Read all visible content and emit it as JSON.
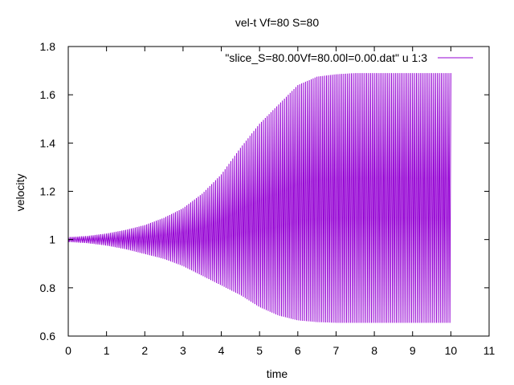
{
  "chart_data": {
    "type": "line",
    "title": "vel-t Vf=80 S=80",
    "xlabel": "time",
    "ylabel": "velocity",
    "xlim": [
      0,
      11
    ],
    "ylim": [
      0.6,
      1.8
    ],
    "xticks": [
      "0",
      "1",
      "2",
      "3",
      "4",
      "5",
      "6",
      "7",
      "8",
      "9",
      "10",
      "11"
    ],
    "yticks": [
      "0.6",
      "0.8",
      "1",
      "1.2",
      "1.4",
      "1.6",
      "1.8"
    ],
    "grid": false,
    "legend_position": "top-right",
    "series": [
      {
        "name": "\"slice_S=80.00Vf=80.00l=0.00.dat\" u 1:3",
        "color": "#9400d3",
        "style": "rapid oscillation filling envelope",
        "upper_envelope": {
          "x": [
            0,
            0.5,
            1,
            1.5,
            2,
            2.5,
            3,
            3.5,
            4,
            4.5,
            5,
            5.5,
            6,
            6.5,
            7,
            7.5,
            8,
            8.5,
            9,
            9.5,
            10
          ],
          "y": [
            1.01,
            1.015,
            1.025,
            1.04,
            1.06,
            1.09,
            1.13,
            1.19,
            1.27,
            1.38,
            1.48,
            1.56,
            1.64,
            1.675,
            1.685,
            1.69,
            1.69,
            1.69,
            1.69,
            1.69,
            1.69
          ]
        },
        "lower_envelope": {
          "x": [
            0,
            0.5,
            1,
            1.5,
            2,
            2.5,
            3,
            3.5,
            4,
            4.5,
            5,
            5.5,
            6,
            6.5,
            7,
            7.5,
            8,
            8.5,
            9,
            9.5,
            10
          ],
          "y": [
            0.99,
            0.985,
            0.975,
            0.96,
            0.94,
            0.92,
            0.89,
            0.85,
            0.81,
            0.77,
            0.72,
            0.685,
            0.665,
            0.658,
            0.655,
            0.655,
            0.655,
            0.655,
            0.655,
            0.655,
            0.655
          ]
        }
      }
    ]
  }
}
